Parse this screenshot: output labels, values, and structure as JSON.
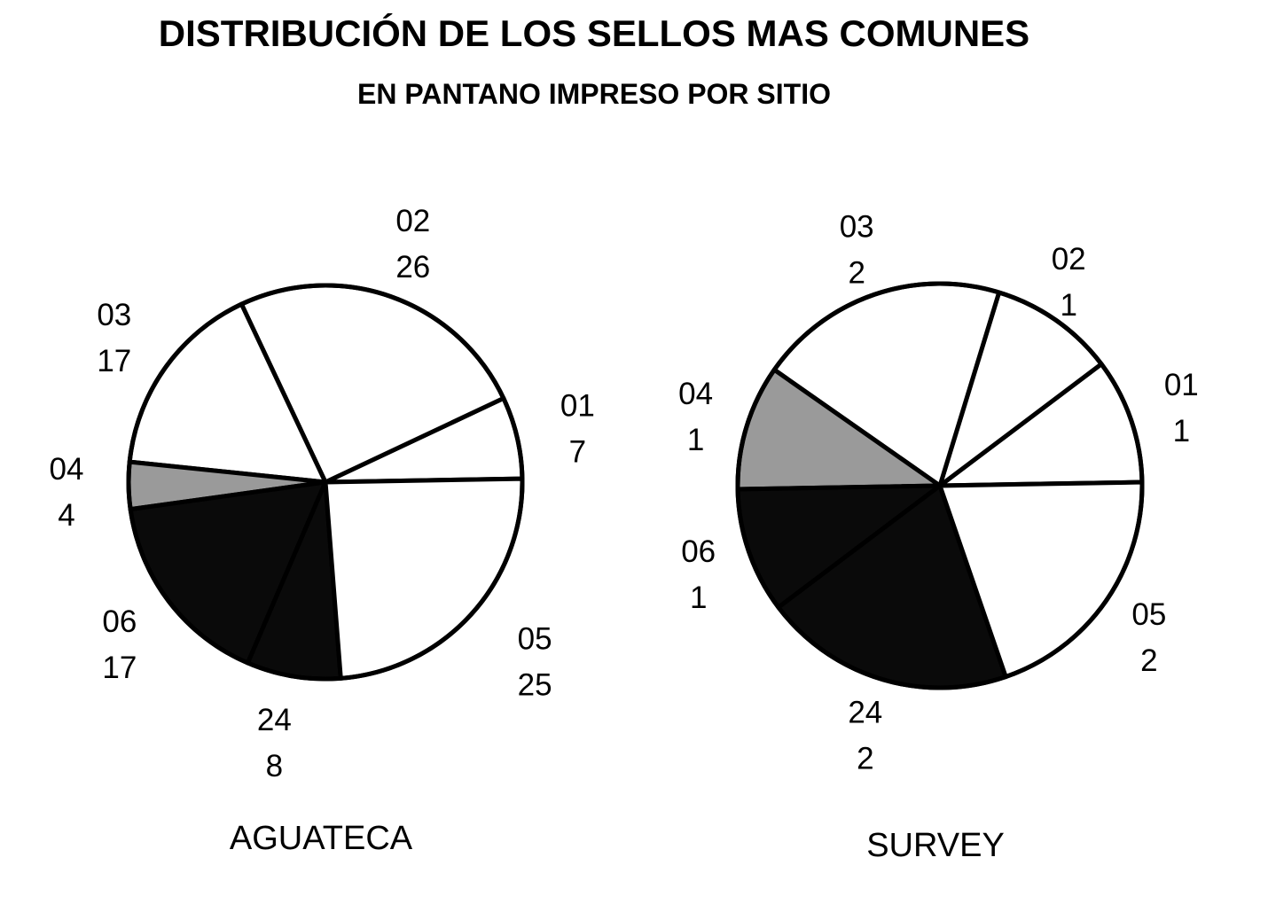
{
  "header": {
    "title": "DISTRIBUCIÓN DE LOS SELLOS MAS COMUNES",
    "subtitle": "EN PANTANO IMPRESO POR SITIO"
  },
  "chart_data": [
    {
      "type": "pie",
      "title": "AGUATECA",
      "slices": [
        {
          "label": "01",
          "value": 7,
          "fill": "white"
        },
        {
          "label": "02",
          "value": 26,
          "fill": "white"
        },
        {
          "label": "03",
          "value": 17,
          "fill": "white"
        },
        {
          "label": "04",
          "value": 4,
          "fill": "gray"
        },
        {
          "label": "06",
          "value": 17,
          "fill": "black"
        },
        {
          "label": "24",
          "value": 8,
          "fill": "black"
        },
        {
          "label": "05",
          "value": 25,
          "fill": "white"
        }
      ]
    },
    {
      "type": "pie",
      "title": "SURVEY",
      "slices": [
        {
          "label": "01",
          "value": 1,
          "fill": "white"
        },
        {
          "label": "02",
          "value": 1,
          "fill": "white"
        },
        {
          "label": "03",
          "value": 2,
          "fill": "white"
        },
        {
          "label": "04",
          "value": 1,
          "fill": "gray"
        },
        {
          "label": "06",
          "value": 1,
          "fill": "black"
        },
        {
          "label": "24",
          "value": 2,
          "fill": "black"
        },
        {
          "label": "05",
          "value": 2,
          "fill": "white"
        }
      ]
    }
  ],
  "colors": {
    "white": "#ffffff",
    "gray": "#9a9a9a",
    "black": "#0a0a0a",
    "stroke": "#000000"
  }
}
